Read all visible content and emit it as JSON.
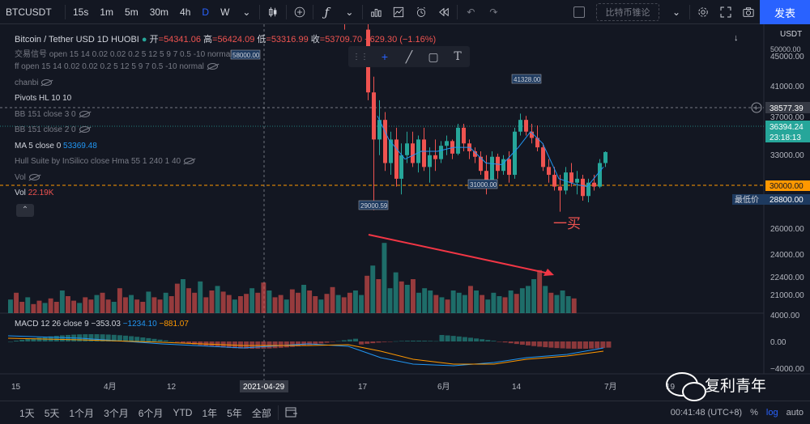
{
  "toolbar": {
    "symbol": "BTCUSDT",
    "intervals": [
      "15s",
      "1m",
      "5m",
      "30m",
      "4h",
      "D",
      "W"
    ],
    "active_interval": "D",
    "compare_label": "比特币锥论",
    "publish_label": "发表"
  },
  "ohlc": {
    "title": "Bitcoin / Tether USD  1D  HUOBI",
    "open_label": "开",
    "open": "=54341.06",
    "high_label": "高",
    "high": "=56424.09",
    "low_label": "低",
    "low": "=53316.99",
    "close_label": "收",
    "close": "=53709.70",
    "change": "−629.30 (−1.16%)"
  },
  "legends": [
    {
      "text": "交易信号 open 15 14 0.02 0.02 0.2 5 12 5 9 7 0.5 -10 normal",
      "bright": false
    },
    {
      "text": "ff  open 15 14 0.02 0.02 0.2 5 12 5 9 7 0.5 -10 normal",
      "bright": false
    },
    {
      "text": "chanbi",
      "bright": false
    },
    {
      "text": "Pivots HL 10 10",
      "bright": true
    },
    {
      "text": "BB 151 close 3 0",
      "bright": false
    },
    {
      "text": "BB 151 close 2 0",
      "bright": false
    },
    {
      "text": "MA 5 close 0",
      "bright": true,
      "value": "53369.48",
      "value_color": "#2196f3"
    },
    {
      "text": "Hull Suite by InSilico close Hma 55 1 240 1 40",
      "bright": false
    },
    {
      "text": "Vol",
      "bright": false
    },
    {
      "text": "Vol",
      "bright": true,
      "value": "22.19K",
      "value_color": "#ef5350"
    }
  ],
  "price_axis": {
    "currency": "USDT",
    "top_value": "50000.00",
    "ticks": [
      "45000.00",
      "41000.00",
      "37000.00",
      "33000.00",
      "30000.00",
      "28800.00",
      "26000.00",
      "24000.00",
      "22400.00",
      "21000.00"
    ],
    "crosshair_value": "38577.39",
    "last_price": "36394.24",
    "countdown": "23:18:13",
    "level_30000": "30000.00",
    "low_label": "最低价",
    "low_value": "28800.00"
  },
  "macd": {
    "label": "MACD 12 26 close 9",
    "hist": "−353.03",
    "macd": "−1234.10",
    "signal": "−881.07",
    "axis": [
      "4000.00",
      "0.00",
      "−4000.00"
    ]
  },
  "time_axis": [
    "15",
    "4月",
    "12",
    "2021-04-29",
    "17",
    "6月",
    "14",
    "7月",
    "19"
  ],
  "annotations": {
    "low1": "29000.59",
    "low2": "31000.00",
    "high1": "41328.00",
    "buy_label": "一买",
    "top_tag": "58000.00"
  },
  "bottombar": {
    "ranges": [
      "1天",
      "5天",
      "1个月",
      "3个月",
      "6个月",
      "YTD",
      "1年",
      "5年",
      "全部"
    ],
    "time": "00:41:48 (UTC+8)",
    "pct": "%",
    "log": "log",
    "auto": "auto"
  },
  "watermark": "复利青年",
  "colors": {
    "up": "#26a69a",
    "down": "#ef5350",
    "accent": "#2962ff",
    "bg": "#131722",
    "ma": "#2196f3"
  }
}
